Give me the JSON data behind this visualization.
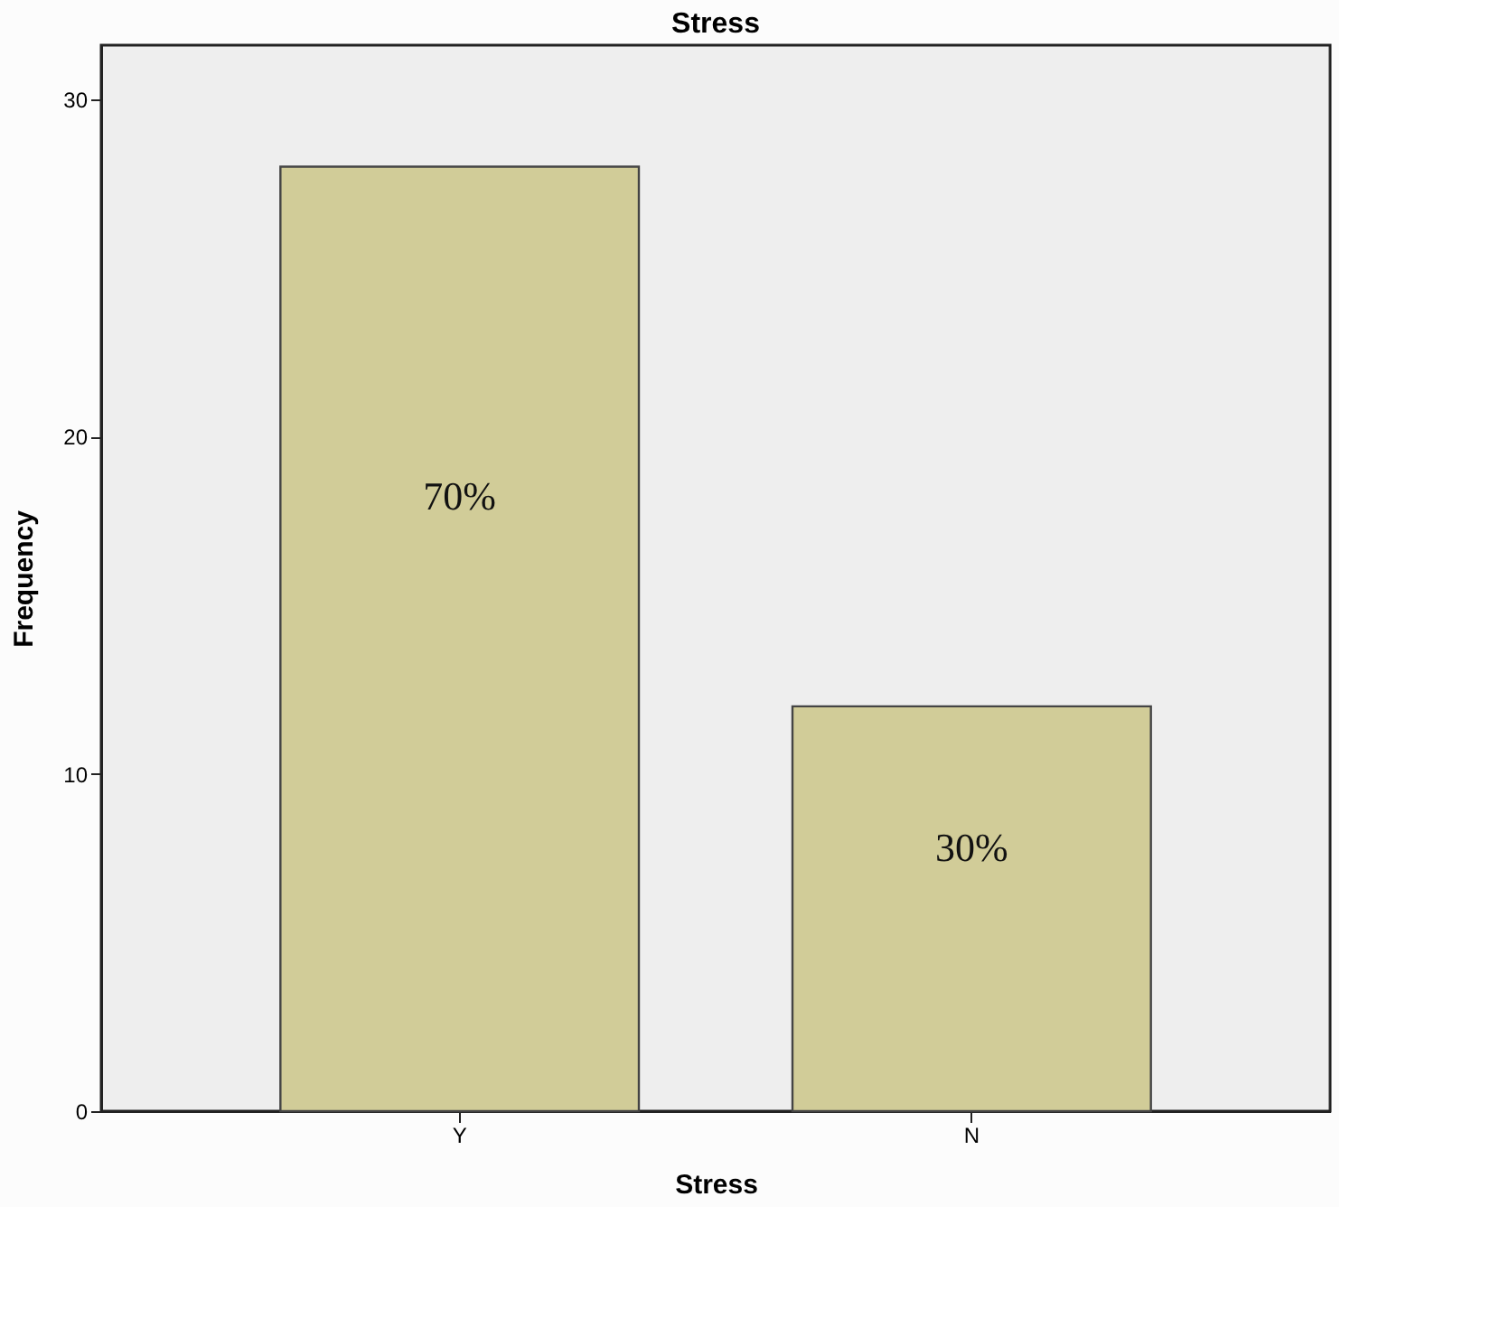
{
  "chart_data": {
    "type": "bar",
    "title": "Stress",
    "xlabel": "Stress",
    "ylabel": "Frequency",
    "categories": [
      "Y",
      "N"
    ],
    "values": [
      28,
      12
    ],
    "annotations": [
      "70%",
      "30%"
    ],
    "color": "#d1cc98",
    "ylim": [
      0,
      31.6
    ],
    "yticks": [
      0,
      10,
      20,
      30
    ],
    "grid": false
  }
}
